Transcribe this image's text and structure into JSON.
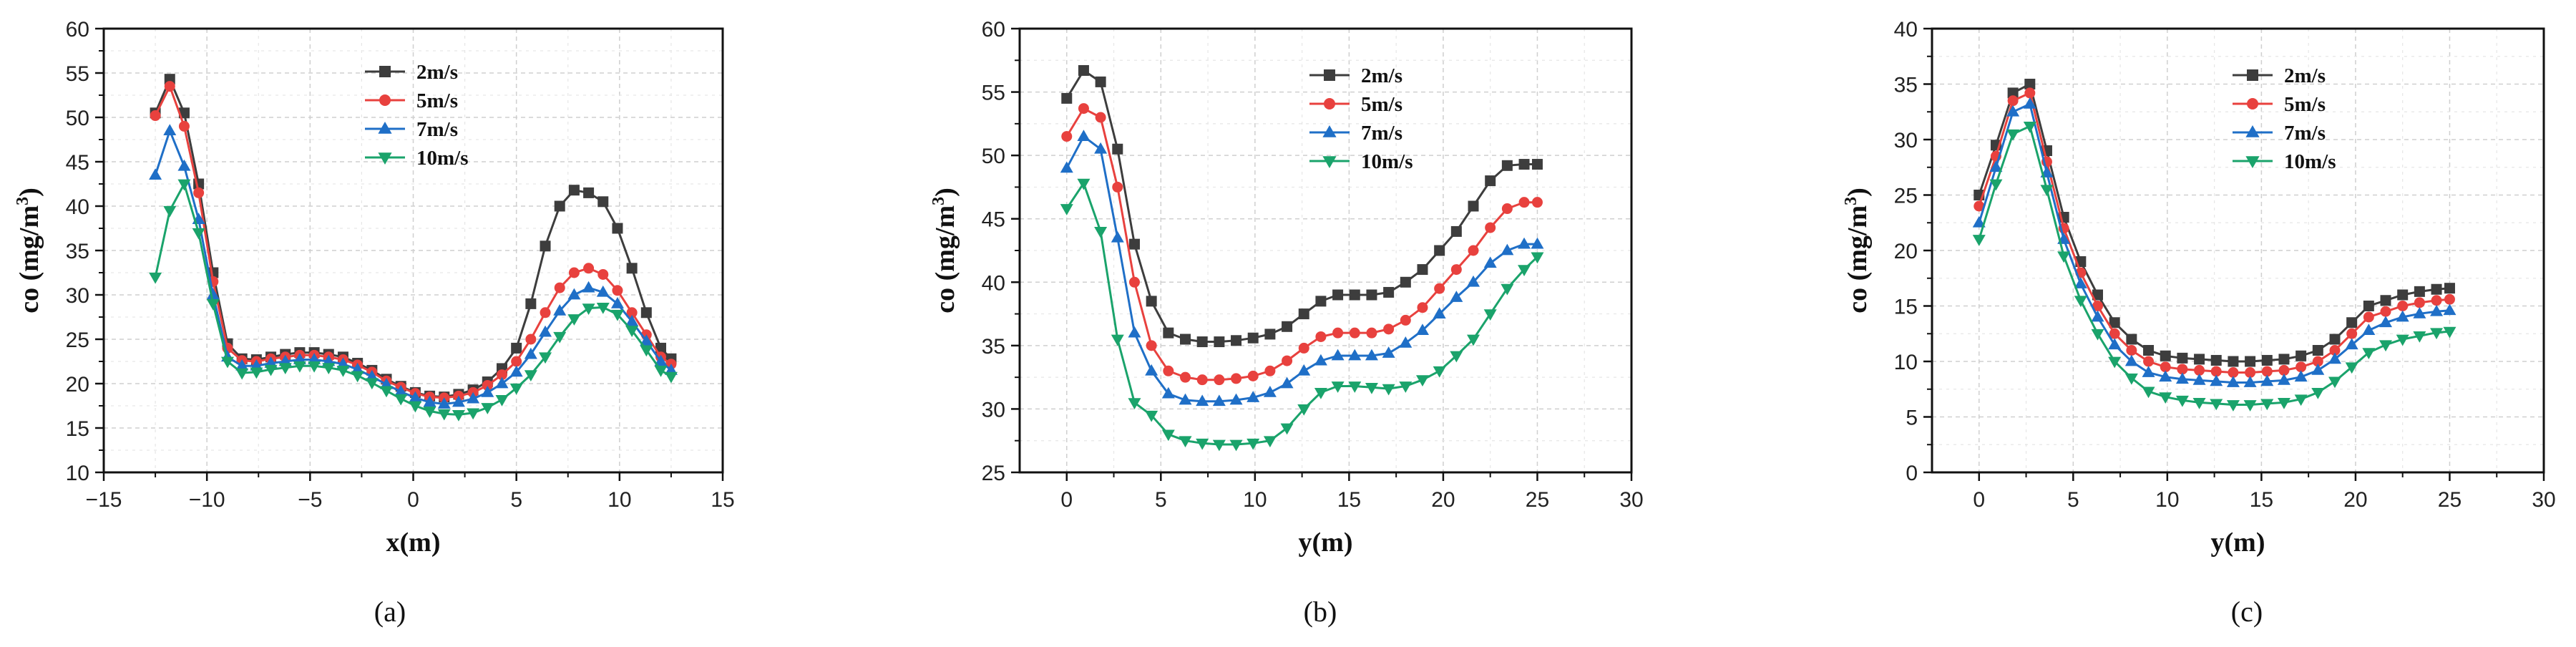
{
  "chart_data": [
    {
      "type": "line",
      "panel_label": "(a)",
      "xlabel": "x(m)",
      "ylabel": "co (mg/m",
      "ylabel_sup": "3",
      "ylabel_end": ")",
      "xlim": [
        -15,
        15
      ],
      "ylim": [
        10,
        60
      ],
      "xticks": [
        -15,
        -10,
        -5,
        0,
        5,
        10,
        15
      ],
      "yticks": [
        10,
        15,
        20,
        25,
        30,
        35,
        40,
        45,
        50,
        55,
        60
      ],
      "grid": true,
      "legend_position": "top-center",
      "x": [
        -12.5,
        -11.8,
        -11.1,
        -10.4,
        -9.7,
        -9.0,
        -8.3,
        -7.6,
        -6.9,
        -6.2,
        -5.5,
        -4.8,
        -4.1,
        -3.4,
        -2.7,
        -2.0,
        -1.3,
        -0.6,
        0.1,
        0.8,
        1.5,
        2.2,
        2.9,
        3.6,
        4.3,
        5.0,
        5.7,
        6.4,
        7.1,
        7.8,
        8.5,
        9.2,
        9.9,
        10.6,
        11.3,
        12.0,
        12.5
      ],
      "series": [
        {
          "name": "2m/s",
          "color": "#3d3d3d",
          "marker": "square",
          "values": [
            50.5,
            54.3,
            50.5,
            42.5,
            32.5,
            24.5,
            22.8,
            22.7,
            23.0,
            23.3,
            23.5,
            23.5,
            23.3,
            23.0,
            22.3,
            21.5,
            20.5,
            19.7,
            19.0,
            18.6,
            18.5,
            18.8,
            19.3,
            20.2,
            21.7,
            24.0,
            29.0,
            35.5,
            40.0,
            41.8,
            41.5,
            40.5,
            37.5,
            33.0,
            28.0,
            24.0,
            22.8
          ]
        },
        {
          "name": "5m/s",
          "color": "#e8413e",
          "marker": "circle",
          "values": [
            50.2,
            53.5,
            49.0,
            41.5,
            31.5,
            24.0,
            22.6,
            22.5,
            22.8,
            23.0,
            23.2,
            23.2,
            23.0,
            22.7,
            22.1,
            21.3,
            20.3,
            19.6,
            18.9,
            18.5,
            18.4,
            18.6,
            19.0,
            19.8,
            21.0,
            22.5,
            25.0,
            28.0,
            30.8,
            32.5,
            33.0,
            32.3,
            30.5,
            28.0,
            25.5,
            23.0,
            22.2
          ]
        },
        {
          "name": "7m/s",
          "color": "#1f6fc7",
          "marker": "triangle-up",
          "values": [
            43.5,
            48.5,
            44.5,
            38.5,
            30.0,
            23.0,
            22.0,
            22.0,
            22.3,
            22.5,
            22.7,
            22.7,
            22.5,
            22.2,
            21.6,
            20.8,
            19.9,
            19.1,
            18.4,
            17.9,
            17.7,
            17.9,
            18.3,
            19.0,
            20.0,
            21.3,
            23.3,
            25.8,
            28.2,
            30.0,
            30.8,
            30.3,
            29.0,
            27.0,
            24.8,
            22.5,
            21.5
          ]
        },
        {
          "name": "10m/s",
          "color": "#1aa36b",
          "marker": "triangle-down",
          "values": [
            32.0,
            39.5,
            42.5,
            37.0,
            29.0,
            22.5,
            21.2,
            21.3,
            21.6,
            21.8,
            22.0,
            22.0,
            21.8,
            21.5,
            20.9,
            20.1,
            19.2,
            18.3,
            17.5,
            16.9,
            16.6,
            16.5,
            16.7,
            17.3,
            18.2,
            19.5,
            21.0,
            23.0,
            25.3,
            27.3,
            28.5,
            28.6,
            27.8,
            26.0,
            23.8,
            21.5,
            20.8
          ]
        }
      ]
    },
    {
      "type": "line",
      "panel_label": "(b)",
      "xlabel": "y(m)",
      "ylabel": "co (mg/m",
      "ylabel_sup": "3",
      "ylabel_end": ")",
      "xlim": [
        -2.5,
        30
      ],
      "ylim": [
        25,
        60
      ],
      "xticks": [
        0,
        5,
        10,
        15,
        20,
        25,
        30
      ],
      "yticks": [
        25,
        30,
        35,
        40,
        45,
        50,
        55,
        60
      ],
      "grid": true,
      "legend_position": "top-right",
      "x": [
        0,
        0.9,
        1.8,
        2.7,
        3.6,
        4.5,
        5.4,
        6.3,
        7.2,
        8.1,
        9.0,
        9.9,
        10.8,
        11.7,
        12.6,
        13.5,
        14.4,
        15.3,
        16.2,
        17.1,
        18.0,
        18.9,
        19.8,
        20.7,
        21.6,
        22.5,
        23.4,
        24.3,
        25.0
      ],
      "series": [
        {
          "name": "2m/s",
          "color": "#3d3d3d",
          "marker": "square",
          "values": [
            54.5,
            56.7,
            55.8,
            50.5,
            43.0,
            38.5,
            36.0,
            35.5,
            35.3,
            35.3,
            35.4,
            35.6,
            35.9,
            36.5,
            37.5,
            38.5,
            39.0,
            39.0,
            39.0,
            39.2,
            40.0,
            41.0,
            42.5,
            44.0,
            46.0,
            48.0,
            49.2,
            49.3,
            49.3
          ]
        },
        {
          "name": "5m/s",
          "color": "#e8413e",
          "marker": "circle",
          "values": [
            51.5,
            53.7,
            53.0,
            47.5,
            40.0,
            35.0,
            33.0,
            32.5,
            32.3,
            32.3,
            32.4,
            32.6,
            33.0,
            33.8,
            34.8,
            35.7,
            36.0,
            36.0,
            36.0,
            36.3,
            37.0,
            38.0,
            39.5,
            41.0,
            42.5,
            44.3,
            45.8,
            46.3,
            46.3
          ]
        },
        {
          "name": "7m/s",
          "color": "#1f6fc7",
          "marker": "triangle-up",
          "values": [
            49.0,
            51.5,
            50.5,
            43.5,
            36.0,
            33.0,
            31.2,
            30.7,
            30.6,
            30.6,
            30.7,
            30.9,
            31.3,
            32.0,
            33.0,
            33.8,
            34.2,
            34.2,
            34.2,
            34.4,
            35.2,
            36.2,
            37.5,
            38.8,
            40.0,
            41.5,
            42.5,
            43.0,
            43.0
          ]
        },
        {
          "name": "10m/s",
          "color": "#1aa36b",
          "marker": "triangle-down",
          "values": [
            45.8,
            47.8,
            44.0,
            35.5,
            30.5,
            29.5,
            28.0,
            27.5,
            27.3,
            27.2,
            27.2,
            27.3,
            27.5,
            28.5,
            30.0,
            31.3,
            31.8,
            31.8,
            31.7,
            31.6,
            31.8,
            32.3,
            33.0,
            34.2,
            35.5,
            37.5,
            39.5,
            41.0,
            42.0
          ]
        }
      ]
    },
    {
      "type": "line",
      "panel_label": "(c)",
      "xlabel": "y(m)",
      "ylabel": "co (mg/m",
      "ylabel_sup": "3",
      "ylabel_end": ")",
      "xlim": [
        -2.5,
        30
      ],
      "ylim": [
        0,
        40
      ],
      "xticks": [
        0,
        5,
        10,
        15,
        20,
        25,
        30
      ],
      "yticks": [
        0,
        5,
        10,
        15,
        20,
        25,
        30,
        35,
        40
      ],
      "grid": true,
      "legend_position": "top-center",
      "x": [
        0,
        0.9,
        1.8,
        2.7,
        3.6,
        4.5,
        5.4,
        6.3,
        7.2,
        8.1,
        9.0,
        9.9,
        10.8,
        11.7,
        12.6,
        13.5,
        14.4,
        15.3,
        16.2,
        17.1,
        18.0,
        18.9,
        19.8,
        20.7,
        21.6,
        22.5,
        23.4,
        24.3,
        25.0
      ],
      "series": [
        {
          "name": "2m/s",
          "color": "#3d3d3d",
          "marker": "square",
          "values": [
            25.0,
            29.5,
            34.2,
            35.0,
            29.0,
            23.0,
            19.0,
            16.0,
            13.5,
            12.0,
            11.0,
            10.5,
            10.3,
            10.2,
            10.1,
            10.0,
            10.0,
            10.1,
            10.2,
            10.5,
            11.0,
            12.0,
            13.5,
            15.0,
            15.5,
            16.0,
            16.3,
            16.5,
            16.6
          ]
        },
        {
          "name": "5m/s",
          "color": "#e8413e",
          "marker": "circle",
          "values": [
            24.0,
            28.5,
            33.5,
            34.2,
            28.0,
            22.0,
            18.0,
            15.0,
            12.5,
            11.0,
            10.0,
            9.5,
            9.3,
            9.2,
            9.1,
            9.0,
            9.0,
            9.1,
            9.2,
            9.5,
            10.0,
            11.0,
            12.5,
            14.0,
            14.5,
            15.0,
            15.3,
            15.5,
            15.6
          ]
        },
        {
          "name": "7m/s",
          "color": "#1f6fc7",
          "marker": "triangle-up",
          "values": [
            22.5,
            27.5,
            32.5,
            33.2,
            27.0,
            21.0,
            17.0,
            14.0,
            11.5,
            10.0,
            9.0,
            8.6,
            8.4,
            8.3,
            8.2,
            8.1,
            8.1,
            8.2,
            8.3,
            8.6,
            9.2,
            10.2,
            11.5,
            12.8,
            13.5,
            14.0,
            14.3,
            14.5,
            14.6
          ]
        },
        {
          "name": "10m/s",
          "color": "#1aa36b",
          "marker": "triangle-down",
          "values": [
            21.0,
            26.0,
            30.5,
            31.2,
            25.5,
            19.5,
            15.5,
            12.5,
            10.0,
            8.5,
            7.3,
            6.8,
            6.5,
            6.3,
            6.2,
            6.1,
            6.1,
            6.2,
            6.3,
            6.6,
            7.2,
            8.2,
            9.5,
            10.8,
            11.5,
            12.0,
            12.3,
            12.6,
            12.7
          ]
        }
      ]
    }
  ]
}
